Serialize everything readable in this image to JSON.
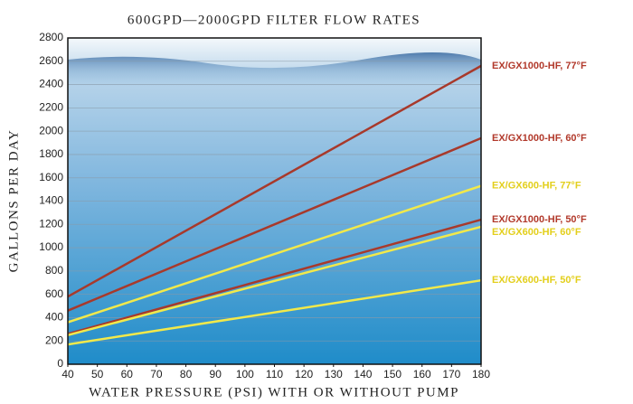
{
  "chart_data": {
    "type": "line",
    "title": "600GPD—2000GPD FILTER FLOW RATES",
    "x_label": "WATER PRESSURE (PSI) WITH OR WITHOUT PUMP",
    "y_label": "GALLONS PER DAY",
    "x": [
      40,
      180
    ],
    "series": [
      {
        "name": "EX/GX1000-HF, 77°F",
        "color": "#a8392b",
        "values": [
          580,
          2560
        ]
      },
      {
        "name": "EX/GX1000-HF, 60°F",
        "color": "#a8392b",
        "values": [
          460,
          1940
        ]
      },
      {
        "name": "EX/GX600-HF, 77°F",
        "color": "#f2e94a",
        "values": [
          360,
          1530
        ]
      },
      {
        "name": "EX/GX1000-HF, 50°F",
        "color": "#a8392b",
        "values": [
          260,
          1240
        ]
      },
      {
        "name": "EX/GX600-HF, 60°F",
        "color": "#f2e94a",
        "values": [
          250,
          1180
        ]
      },
      {
        "name": "EX/GX600-HF, 50°F",
        "color": "#f2e94a",
        "values": [
          170,
          720
        ]
      }
    ],
    "xlim": [
      40,
      180
    ],
    "xticks": [
      40,
      50,
      60,
      70,
      80,
      90,
      100,
      110,
      120,
      130,
      140,
      150,
      160,
      170,
      180
    ],
    "ylim": [
      0,
      2800
    ],
    "yticks": [
      0,
      200,
      400,
      600,
      800,
      1000,
      1200,
      1400,
      1600,
      1800,
      2000,
      2200,
      2400,
      2600,
      2800
    ],
    "grid": true
  }
}
